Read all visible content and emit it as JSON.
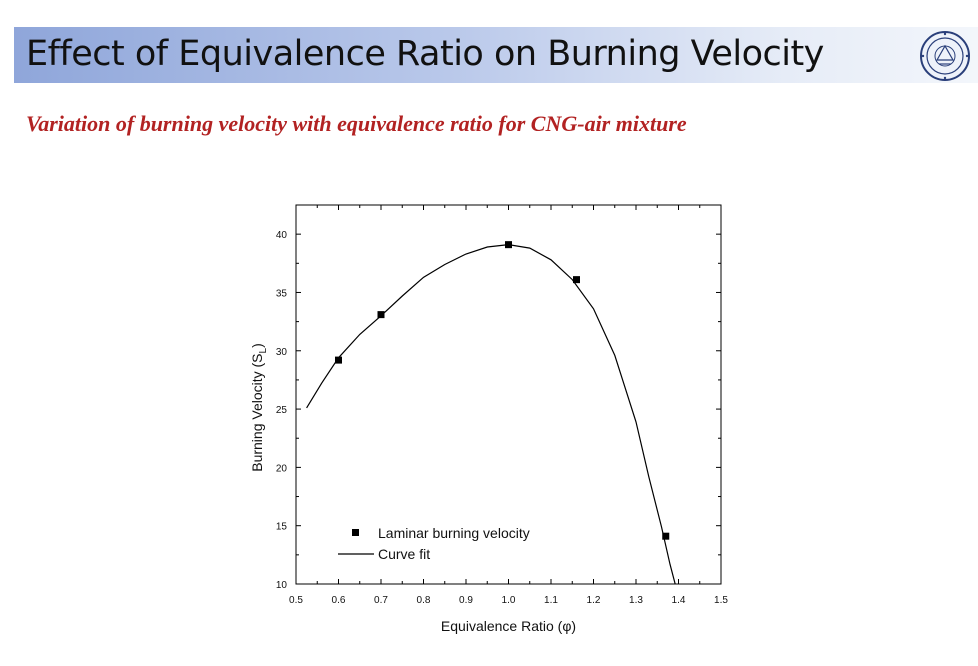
{
  "slide": {
    "title": "Effect of Equivalence Ratio on Burning Velocity",
    "subtitle": "Variation of burning velocity with equivalence ratio for CNG-air mixture"
  },
  "chart_data": {
    "type": "scatter",
    "title": "",
    "xlabel": "Equivalence Ratio (φ)",
    "ylabel": "Burning Velocity (S",
    "ylabel_sub": "L",
    "ylabel_close": ")",
    "xlim": [
      0.5,
      1.5
    ],
    "ylim": [
      10,
      42.5
    ],
    "xticks": [
      0.5,
      0.6,
      0.7,
      0.8,
      0.9,
      1.0,
      1.1,
      1.2,
      1.3,
      1.4,
      1.5
    ],
    "xtick_labels": [
      "0.5",
      "0.6",
      "0.7",
      "0.8",
      "0.9",
      "1.0",
      "1.1",
      "1.2",
      "1.3",
      "1.4",
      "1.5"
    ],
    "yticks": [
      10,
      15,
      20,
      25,
      30,
      35,
      40
    ],
    "ytick_labels": [
      "10",
      "15",
      "20",
      "25",
      "30",
      "35",
      "40"
    ],
    "legend_position": "bottom-left",
    "series": [
      {
        "name": "Laminar burning velocity",
        "marker": "square",
        "x": [
          0.6,
          0.7,
          1.0,
          1.16,
          1.37
        ],
        "y": [
          29.2,
          33.1,
          39.1,
          36.1,
          14.1
        ]
      },
      {
        "name": "Curve fit",
        "style": "line",
        "x": [
          0.525,
          0.56,
          0.6,
          0.65,
          0.7,
          0.75,
          0.8,
          0.85,
          0.9,
          0.95,
          1.0,
          1.05,
          1.1,
          1.15,
          1.2,
          1.25,
          1.3,
          1.33,
          1.36,
          1.38,
          1.395
        ],
        "y": [
          25.1,
          27.2,
          29.4,
          31.4,
          33.0,
          34.7,
          36.3,
          37.4,
          38.3,
          38.9,
          39.1,
          38.8,
          37.8,
          36.1,
          33.6,
          29.6,
          23.9,
          19.2,
          14.9,
          11.7,
          9.6
        ]
      }
    ]
  },
  "colors": {
    "subtitle": "#b22222",
    "marker": "#000000",
    "line": "#000000"
  }
}
